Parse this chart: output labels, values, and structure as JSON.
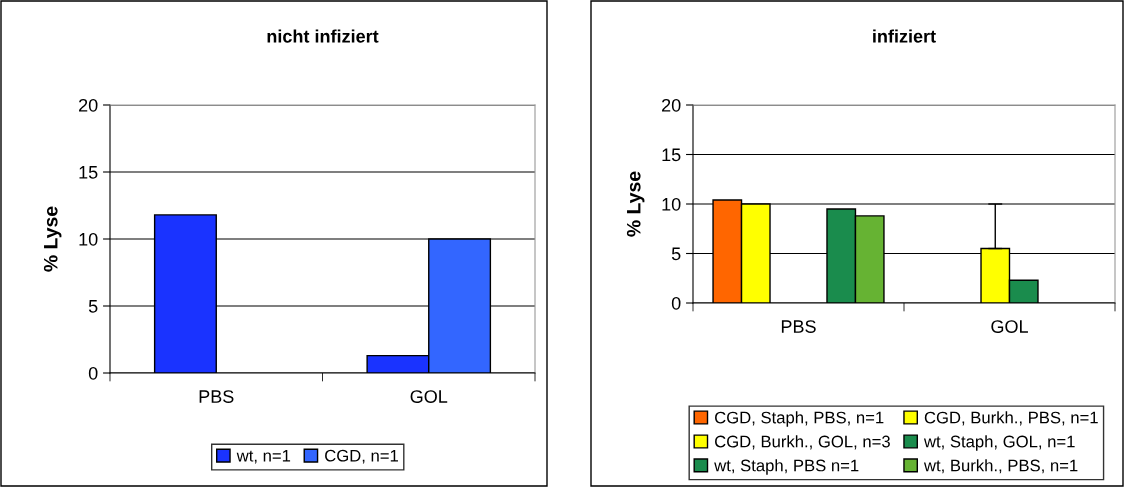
{
  "chart_data": [
    {
      "type": "bar",
      "title": "nicht infiziert",
      "ylabel": "% Lyse",
      "categories": [
        "PBS",
        "GOL"
      ],
      "ylim": [
        0,
        20
      ],
      "yticks": [
        0,
        5,
        10,
        15,
        20
      ],
      "grid": "y",
      "legend": "bottom",
      "series": [
        {
          "name": "wt, n=1",
          "color": "#1a33ff",
          "values": [
            11.8,
            1.3
          ]
        },
        {
          "name": "CGD, n=1",
          "color": "#3366ff",
          "values": [
            null,
            10.0
          ]
        }
      ]
    },
    {
      "type": "bar",
      "title": "infiziert",
      "ylabel": "% Lyse",
      "categories": [
        "PBS",
        "GOL"
      ],
      "ylim": [
        0,
        20
      ],
      "yticks": [
        0,
        5,
        10,
        15,
        20
      ],
      "grid": "y",
      "legend": "bottom",
      "series": [
        {
          "name": "CGD, Staph, PBS, n=1",
          "color": "#ff6600",
          "values": [
            10.4,
            null
          ]
        },
        {
          "name": "CGD, Burkh., PBS, n=1",
          "color": "#ffff00",
          "values": [
            10.0,
            null
          ]
        },
        {
          "name": "CGD, Burkh., GOL, n=3",
          "color": "#ffff00",
          "values": [
            null,
            5.5
          ],
          "errors": [
            null,
            [
              5.5,
              10.0
            ]
          ]
        },
        {
          "name": "wt, Staph, GOL, n=1",
          "color": "#1a8c4d",
          "values": [
            null,
            2.3
          ]
        },
        {
          "name": "wt, Staph, PBS n=1",
          "color": "#1a8c4d",
          "values": [
            9.5,
            null
          ]
        },
        {
          "name": "wt, Burkh., PBS, n=1",
          "color": "#66b333",
          "values": [
            8.8,
            null
          ]
        }
      ]
    }
  ]
}
